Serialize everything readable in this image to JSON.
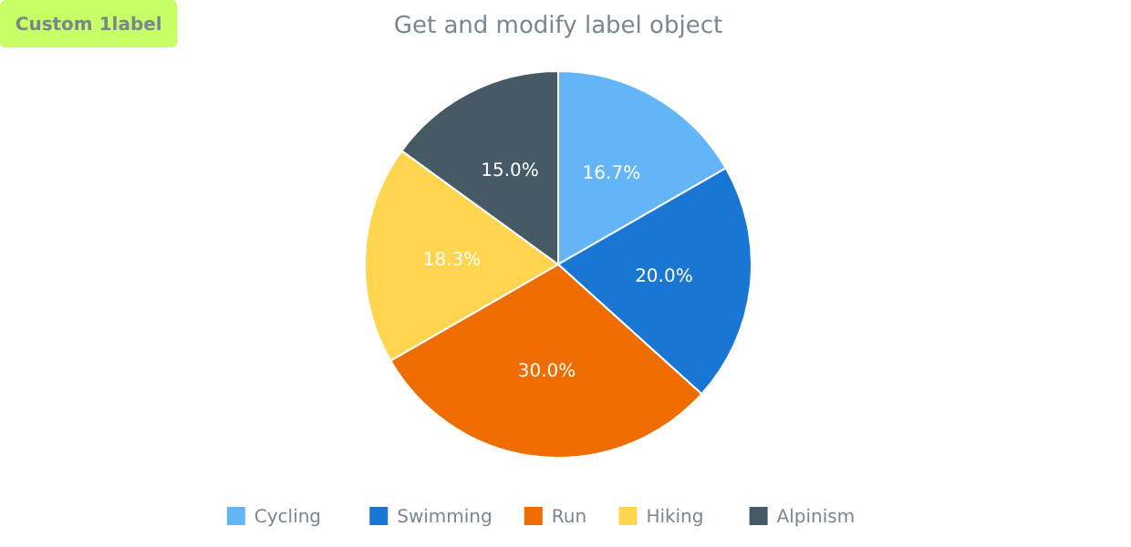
{
  "chart_data": {
    "type": "pie",
    "title": "Get and modify label object",
    "categories": [
      "Cycling",
      "Swimming",
      "Run",
      "Hiking",
      "Alpinism"
    ],
    "values": [
      16.7,
      20.0,
      30.0,
      18.3,
      15.0
    ],
    "colors": [
      "#64b5f6",
      "#1976d2",
      "#ef6c00",
      "#ffd54f",
      "#455a64"
    ],
    "value_labels": [
      "16.7%",
      "20.0%",
      "30.0%",
      "18.3%",
      "15.0%"
    ],
    "legend": "bottom",
    "annotations": [
      "Custom 1label"
    ]
  }
}
